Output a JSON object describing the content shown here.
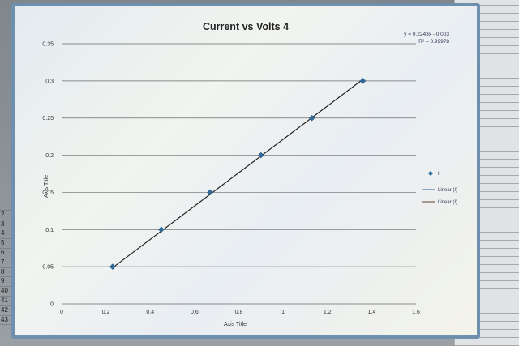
{
  "chart_data": {
    "type": "scatter",
    "title": "Current vs Volts 4",
    "xlabel": "Axis Title",
    "ylabel": "Axis Title",
    "xlim": [
      0,
      1.6
    ],
    "ylim": [
      0,
      0.35
    ],
    "x_ticks": [
      "0",
      "0.2",
      "0.4",
      "0.6",
      "0.8",
      "1",
      "1.2",
      "1.4",
      "1.6"
    ],
    "y_ticks": [
      "0",
      "0.05",
      "0.1",
      "0.15",
      "0.2",
      "0.25",
      "0.3",
      "0.35"
    ],
    "grid": "horizontal",
    "legend_position": "right",
    "legend": [
      "I",
      "Linear (I)",
      "Linear (I)"
    ],
    "series": [
      {
        "name": "I",
        "x": [
          0.23,
          0.45,
          0.67,
          0.9,
          1.13,
          1.36
        ],
        "y": [
          0.05,
          0.1,
          0.15,
          0.2,
          0.25,
          0.3
        ]
      }
    ],
    "trendline": {
      "slope": 0.2243,
      "intercept": -0.003
    },
    "annotations": [
      "y = 0.2243x - 0.003",
      "R² = 0.99978"
    ],
    "colors": {
      "marker": "#2f6b9a",
      "trendline": "#222222",
      "legend_line_1": "#4a78b0",
      "legend_line_2": "#7a5a50"
    }
  },
  "row_numbers": [
    "",
    "2",
    "3",
    "4",
    "5",
    "6",
    "7",
    "8",
    "9",
    "40",
    "41",
    "42",
    "43"
  ]
}
